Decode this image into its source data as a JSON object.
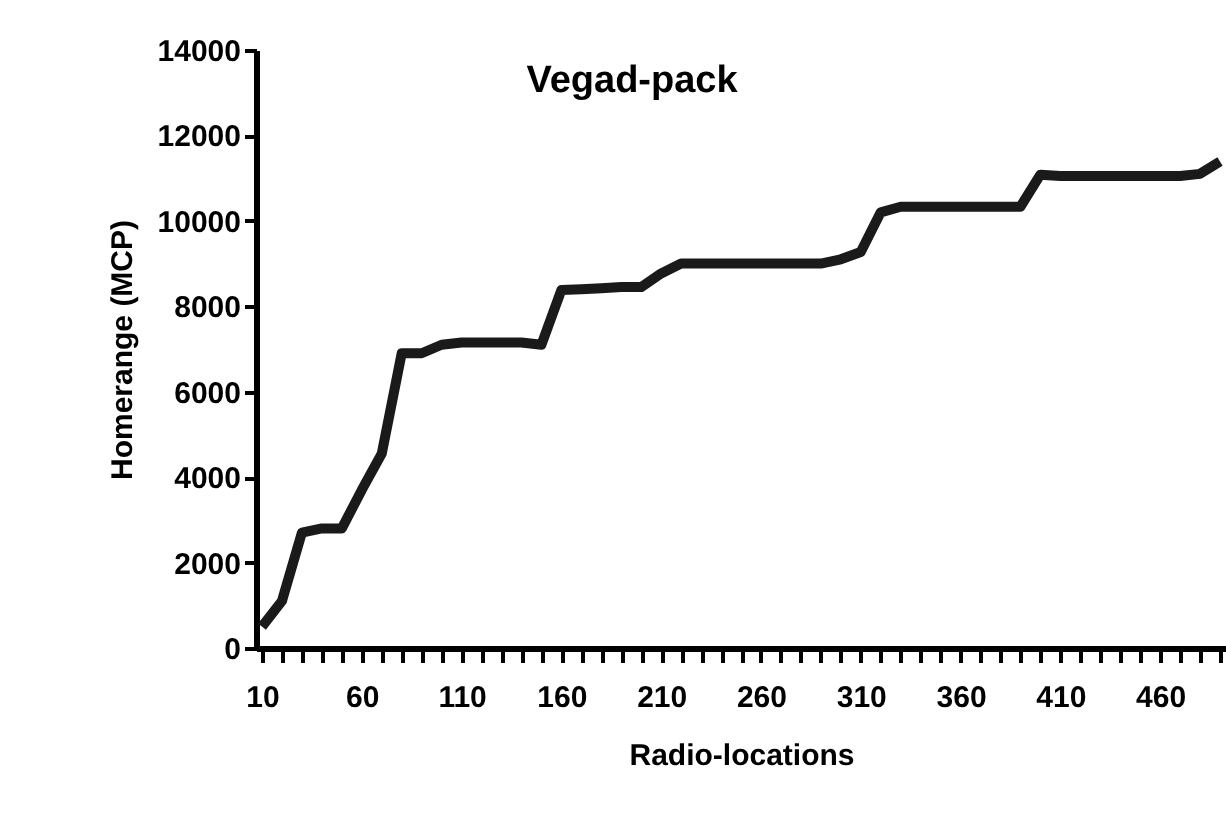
{
  "chart_data": {
    "type": "line",
    "title": "Vegad-pack",
    "xlabel": "Radio-locations",
    "ylabel": "Homerange (MCP)",
    "categories": [
      "10",
      null,
      null,
      null,
      null,
      "60",
      null,
      null,
      null,
      null,
      "110",
      null,
      null,
      null,
      null,
      "160",
      null,
      null,
      null,
      null,
      "210",
      null,
      null,
      null,
      null,
      "260",
      null,
      null,
      null,
      null,
      "310",
      null,
      null,
      null,
      null,
      "360",
      null,
      null,
      null,
      null,
      "410",
      null,
      null,
      null,
      null,
      "460",
      null,
      null,
      null
    ],
    "series": [
      {
        "color": "#1a1a1a",
        "values": [
          500,
          1100,
          2700,
          2800,
          2800,
          3700,
          4550,
          6900,
          6900,
          7100,
          7150,
          7150,
          7150,
          7150,
          7100,
          8380,
          8400,
          8420,
          8450,
          8450,
          8770,
          9000,
          9000,
          9000,
          9000,
          9000,
          9000,
          9000,
          9000,
          9100,
          9270,
          10200,
          10330,
          10330,
          10330,
          10330,
          10330,
          10330,
          10330,
          11080,
          11050,
          11050,
          11050,
          11050,
          11050,
          11050,
          11050,
          11100,
          11390
        ]
      }
    ],
    "ylim": [
      0,
      14000
    ],
    "yticks": [
      0,
      2000,
      4000,
      6000,
      8000,
      10000,
      12000,
      14000
    ],
    "grid": false,
    "marker": "none",
    "line_style": "solid"
  }
}
